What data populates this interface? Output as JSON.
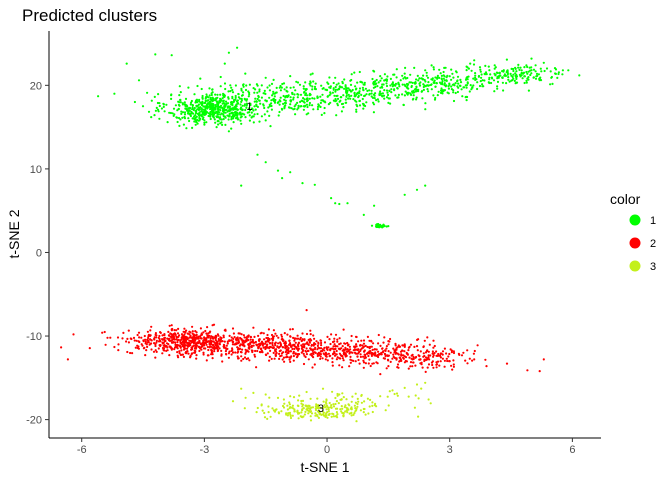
{
  "chart_data": {
    "type": "scatter",
    "title": "Predicted clusters",
    "xlabel": "t-SNE 1",
    "ylabel": "t-SNE 2",
    "xlim": [
      -6.8,
      6.7
    ],
    "ylim": [
      -22.2,
      26.5
    ],
    "x_ticks": [
      -6,
      -3,
      0,
      3,
      6
    ],
    "y_ticks": [
      -20,
      -10,
      0,
      10,
      20
    ],
    "grid": false,
    "legend": {
      "title": "color",
      "placement": "right",
      "entries": [
        {
          "label": "1",
          "color": "#00ff00"
        },
        {
          "label": "2",
          "color": "#ff0000"
        },
        {
          "label": "3",
          "color": "#c3f01b"
        }
      ]
    },
    "cluster_labels": [
      {
        "text": "1",
        "x": -1.9,
        "y": 17.5
      },
      {
        "text": "3",
        "x": -0.15,
        "y": -18.6
      }
    ],
    "series": [
      {
        "name": "1",
        "color": "#00ff00",
        "points": [
          [
            -5.6,
            18.7
          ],
          [
            -5.2,
            19.0
          ],
          [
            -4.9,
            22.6
          ],
          [
            -4.6,
            20.6
          ],
          [
            -4.4,
            19.1
          ],
          [
            -4.2,
            23.7
          ],
          [
            -3.8,
            23.6
          ],
          [
            -2.4,
            23.9
          ],
          [
            -2.2,
            24.5
          ],
          [
            -2.5,
            22.6
          ],
          [
            -4.7,
            18.0
          ],
          [
            -4.5,
            17.5
          ],
          [
            -4.3,
            16.2
          ],
          [
            -4.1,
            16.0
          ],
          [
            -3.9,
            15.6
          ],
          [
            -3.5,
            15.3
          ],
          [
            -3.3,
            14.9
          ],
          [
            -3.0,
            15.3
          ],
          [
            -2.7,
            15.0
          ],
          [
            -2.4,
            14.5
          ],
          [
            -2.1,
            15.4
          ],
          [
            -1.5,
            15.8
          ],
          [
            -3.6,
            19.9
          ],
          [
            -3.1,
            20.8
          ],
          [
            -2.6,
            21.0
          ],
          [
            -2.0,
            21.4
          ],
          [
            -1.5,
            20.9
          ],
          [
            -0.9,
            21.1
          ],
          [
            -0.4,
            21.3
          ],
          [
            0.2,
            20.9
          ],
          [
            0.8,
            21.6
          ],
          [
            1.3,
            21.1
          ],
          [
            1.9,
            21.4
          ],
          [
            2.4,
            21.8
          ],
          [
            2.9,
            22.1
          ],
          [
            3.5,
            22.6
          ],
          [
            3.6,
            23.0
          ],
          [
            4.1,
            22.4
          ],
          [
            4.6,
            22.1
          ],
          [
            5.1,
            22.4
          ],
          [
            5.3,
            22.7
          ],
          [
            5.6,
            21.9
          ],
          [
            5.9,
            21.8
          ],
          [
            5.5,
            21.0
          ],
          [
            4.9,
            20.8
          ],
          [
            4.3,
            20.3
          ],
          [
            3.8,
            19.9
          ],
          [
            3.2,
            19.2
          ],
          [
            2.6,
            18.8
          ],
          [
            2.1,
            18.3
          ],
          [
            1.5,
            17.9
          ],
          [
            0.9,
            17.6
          ],
          [
            0.4,
            17.4
          ],
          [
            -0.2,
            17.6
          ],
          [
            -0.7,
            17.3
          ],
          [
            -1.1,
            17.1
          ],
          [
            -2.1,
            8.0
          ],
          [
            -1.7,
            11.7
          ],
          [
            -1.5,
            10.8
          ],
          [
            -1.2,
            9.8
          ],
          [
            -1.1,
            8.9
          ],
          [
            -0.9,
            9.6
          ],
          [
            -0.6,
            8.3
          ],
          [
            -0.3,
            8.1
          ],
          [
            0.1,
            6.5
          ],
          [
            0.2,
            5.9
          ],
          [
            0.3,
            5.8
          ],
          [
            0.5,
            5.9
          ],
          [
            0.9,
            4.5
          ],
          [
            1.1,
            3.2
          ],
          [
            1.2,
            3.1
          ],
          [
            1.3,
            3.3
          ],
          [
            1.4,
            3.2
          ],
          [
            1.35,
            3.0
          ],
          [
            1.25,
            3.4
          ],
          [
            1.15,
            5.6
          ],
          [
            1.9,
            6.9
          ],
          [
            2.2,
            7.5
          ],
          [
            2.4,
            8.0
          ]
        ]
      },
      {
        "name": "2",
        "color": "#ff0000",
        "points": [
          [
            -6.2,
            -9.8
          ],
          [
            -5.5,
            -9.6
          ],
          [
            -5.3,
            -10.2
          ],
          [
            -5.1,
            -11.0
          ],
          [
            -4.8,
            -10.3
          ],
          [
            -4.6,
            -9.6
          ],
          [
            -4.4,
            -11.3
          ],
          [
            -4.1,
            -10.0
          ],
          [
            -3.9,
            -11.7
          ],
          [
            -3.5,
            -12.5
          ],
          [
            -3.2,
            -12.7
          ],
          [
            -2.9,
            -12.3
          ],
          [
            -2.4,
            -12.6
          ],
          [
            -1.9,
            -12.9
          ],
          [
            -1.4,
            -12.5
          ],
          [
            -0.9,
            -13.1
          ],
          [
            -0.3,
            -13.4
          ],
          [
            0.3,
            -13.5
          ],
          [
            0.9,
            -13.8
          ],
          [
            1.5,
            -13.6
          ],
          [
            2.0,
            -13.9
          ],
          [
            2.6,
            -13.8
          ],
          [
            3.1,
            -13.4
          ],
          [
            3.6,
            -12.8
          ],
          [
            3.9,
            -13.6
          ],
          [
            4.4,
            -13.3
          ],
          [
            4.9,
            -14.1
          ],
          [
            5.2,
            -14.2
          ],
          [
            5.3,
            -12.8
          ],
          [
            -4.3,
            -8.9
          ],
          [
            -3.8,
            -8.7
          ],
          [
            -3.3,
            -8.9
          ],
          [
            -2.8,
            -8.7
          ],
          [
            -2.3,
            -9.1
          ],
          [
            -1.8,
            -9.0
          ],
          [
            -1.3,
            -9.3
          ],
          [
            -0.9,
            -9.2
          ],
          [
            -0.5,
            -6.9
          ],
          [
            -0.6,
            -9.7
          ],
          [
            0.1,
            -9.8
          ],
          [
            0.6,
            -10.0
          ],
          [
            1.0,
            -10.1
          ],
          [
            1.5,
            -10.6
          ],
          [
            1.9,
            -11.0
          ],
          [
            2.2,
            -11.2
          ],
          [
            2.6,
            -11.4
          ],
          [
            2.8,
            -12.1
          ],
          [
            3.3,
            -12.3
          ],
          [
            3.0,
            -13.0
          ]
        ]
      },
      {
        "name": "3",
        "color": "#c3f01b",
        "points": [
          [
            -2.3,
            -17.8
          ],
          [
            -2.1,
            -16.3
          ],
          [
            -1.8,
            -16.8
          ],
          [
            -1.5,
            -17.0
          ],
          [
            -1.2,
            -17.4
          ],
          [
            -0.9,
            -17.2
          ],
          [
            -0.5,
            -16.7
          ],
          [
            -0.1,
            -16.3
          ],
          [
            0.3,
            -17.0
          ],
          [
            0.7,
            -16.9
          ],
          [
            1.0,
            -17.5
          ],
          [
            1.3,
            -17.2
          ],
          [
            1.6,
            -16.5
          ],
          [
            1.9,
            -16.2
          ],
          [
            2.2,
            -15.8
          ],
          [
            2.4,
            -15.6
          ],
          [
            -1.6,
            -18.3
          ],
          [
            -1.3,
            -18.9
          ],
          [
            -1.0,
            -19.4
          ],
          [
            -0.6,
            -19.7
          ],
          [
            -0.2,
            -19.8
          ],
          [
            0.2,
            -19.6
          ],
          [
            0.6,
            -19.5
          ],
          [
            0.9,
            -19.1
          ],
          [
            1.2,
            -18.4
          ]
        ]
      }
    ]
  }
}
